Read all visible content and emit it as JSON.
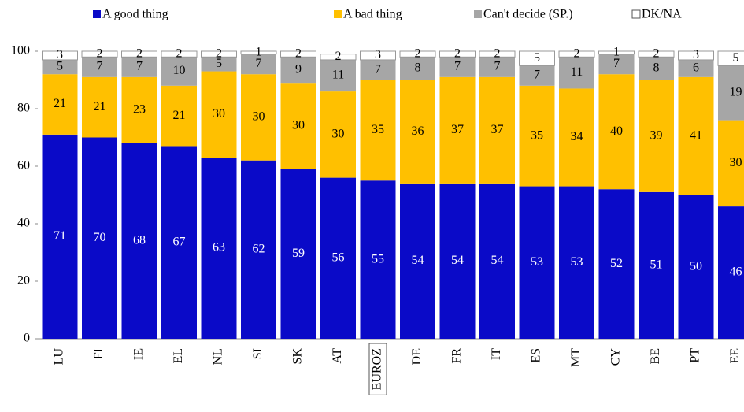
{
  "chart_data": {
    "type": "stacked_bar",
    "categories": [
      "LU",
      "FI",
      "IE",
      "EL",
      "NL",
      "SI",
      "SK",
      "AT",
      "EUROZ",
      "DE",
      "FR",
      "IT",
      "ES",
      "MT",
      "CY",
      "BE",
      "PT",
      "EE"
    ],
    "highlight": "EUROZ",
    "series": [
      {
        "name": "A good thing",
        "color": "#0a0ac8",
        "label_color": "#ffffff",
        "values": [
          71,
          70,
          68,
          67,
          63,
          62,
          59,
          56,
          55,
          54,
          54,
          54,
          53,
          53,
          52,
          51,
          50,
          46
        ]
      },
      {
        "name": "A bad thing",
        "color": "#ffc000",
        "label_color": "#000000",
        "values": [
          21,
          21,
          23,
          21,
          30,
          30,
          30,
          30,
          35,
          36,
          37,
          37,
          35,
          34,
          40,
          39,
          41,
          30
        ]
      },
      {
        "name": "Can't decide (SP.)",
        "color": "#a6a6a6",
        "label_color": "#000000",
        "values": [
          5,
          7,
          7,
          10,
          5,
          7,
          9,
          11,
          7,
          8,
          7,
          7,
          7,
          11,
          7,
          8,
          6,
          19
        ]
      },
      {
        "name": "DK/NA",
        "color": "#ffffff",
        "label_color": "#000000",
        "values": [
          3,
          2,
          2,
          2,
          2,
          1,
          2,
          2,
          3,
          2,
          2,
          2,
          5,
          2,
          1,
          2,
          3,
          5
        ]
      }
    ],
    "ylim": [
      0,
      100
    ],
    "yticks": [
      0,
      20,
      40,
      60,
      80,
      100
    ]
  }
}
